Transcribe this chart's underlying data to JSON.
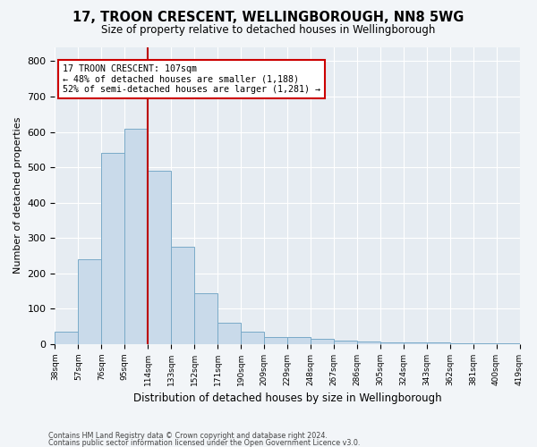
{
  "title1": "17, TROON CRESCENT, WELLINGBOROUGH, NN8 5WG",
  "title2": "Size of property relative to detached houses in Wellingborough",
  "xlabel": "Distribution of detached houses by size in Wellingborough",
  "ylabel": "Number of detached properties",
  "footer1": "Contains HM Land Registry data © Crown copyright and database right 2024.",
  "footer2": "Contains public sector information licensed under the Open Government Licence v3.0.",
  "bin_labels": [
    "38sqm",
    "57sqm",
    "76sqm",
    "95sqm",
    "114sqm",
    "133sqm",
    "152sqm",
    "171sqm",
    "190sqm",
    "209sqm",
    "229sqm",
    "248sqm",
    "267sqm",
    "286sqm",
    "305sqm",
    "324sqm",
    "343sqm",
    "362sqm",
    "381sqm",
    "400sqm",
    "419sqm"
  ],
  "bar_heights": [
    35,
    240,
    540,
    610,
    490,
    275,
    145,
    60,
    35,
    20,
    20,
    15,
    10,
    8,
    5,
    5,
    5,
    3,
    2,
    3
  ],
  "bar_color": "#c9daea",
  "bar_edge_color": "#7aaac8",
  "property_line_x": 4,
  "annotation_text": "17 TROON CRESCENT: 107sqm\n← 48% of detached houses are smaller (1,188)\n52% of semi-detached houses are larger (1,281) →",
  "annotation_box_color": "#ffffff",
  "annotation_box_edge": "#cc0000",
  "vline_color": "#bb0000",
  "background_color": "#f2f5f8",
  "plot_bg_color": "#e6ecf2",
  "ylim": [
    0,
    840
  ],
  "yticks": [
    0,
    100,
    200,
    300,
    400,
    500,
    600,
    700,
    800
  ]
}
